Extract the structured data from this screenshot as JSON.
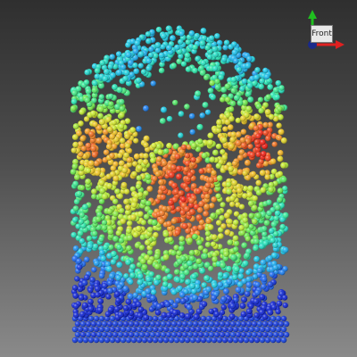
{
  "viewer": {
    "view_label": "Front",
    "colormap": [
      "#0a1fd0",
      "#1a6df0",
      "#17c5e8",
      "#23e6b0",
      "#5fe64a",
      "#c8e82a",
      "#f0c020",
      "#f07020",
      "#ee1a10"
    ],
    "background_colors": [
      "#2f2f2f",
      "#8a8a8a"
    ]
  },
  "triad": {
    "x_axis_color": "#e02020",
    "y_axis_color": "#20c020",
    "z_axis_color": "#1a2a8a",
    "icons": [
      "x-axis-arrow-icon",
      "y-axis-arrow-icon",
      "z-axis-dot-icon"
    ]
  }
}
